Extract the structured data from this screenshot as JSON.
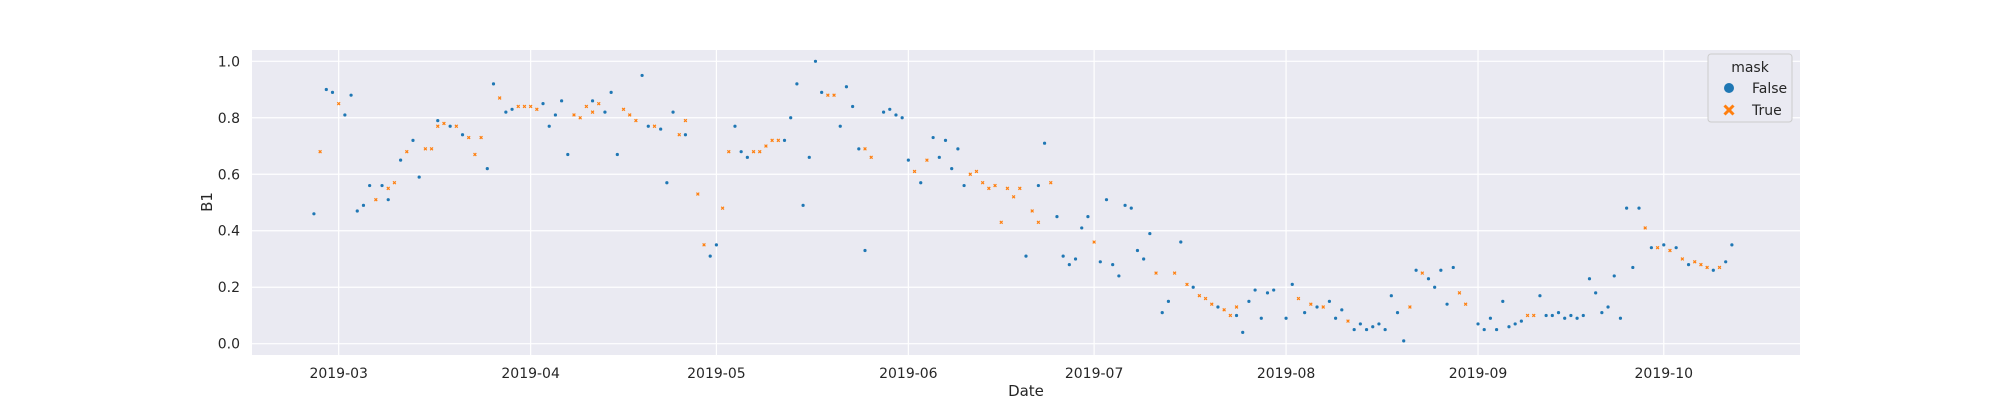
{
  "chart_data": {
    "type": "scatter",
    "title": "",
    "xlabel": "Date",
    "ylabel": "B1",
    "x_range": [
      "2019-02-15",
      "2019-10-23"
    ],
    "ylim": [
      -0.04,
      1.04
    ],
    "x_ticks": [
      "2019-03-01",
      "2019-04-01",
      "2019-05-01",
      "2019-06-01",
      "2019-07-01",
      "2019-08-01",
      "2019-09-01",
      "2019-10-01"
    ],
    "x_tick_labels": [
      "2019-03",
      "2019-04",
      "2019-05",
      "2019-06",
      "2019-07",
      "2019-08",
      "2019-09",
      "2019-10"
    ],
    "y_ticks": [
      0.0,
      0.2,
      0.4,
      0.6,
      0.8,
      1.0
    ],
    "y_tick_labels": [
      "0.0",
      "0.2",
      "0.4",
      "0.6",
      "0.8",
      "1.0"
    ],
    "grid": true,
    "background": "#eaeaf2",
    "legend": {
      "title": "mask",
      "placement": "top-right",
      "entries": [
        {
          "label": "False",
          "marker": "circle",
          "color": "#1f77b4"
        },
        {
          "label": "True",
          "marker": "x",
          "color": "#ff7f0e"
        }
      ]
    },
    "series": [
      {
        "name": "False",
        "color": "#1f77b4",
        "marker": "circle",
        "points": [
          [
            "2019-02-25",
            0.46
          ],
          [
            "2019-02-27",
            0.9
          ],
          [
            "2019-02-28",
            0.89
          ],
          [
            "2019-03-02",
            0.81
          ],
          [
            "2019-03-03",
            0.88
          ],
          [
            "2019-03-04",
            0.47
          ],
          [
            "2019-03-05",
            0.49
          ],
          [
            "2019-03-06",
            0.56
          ],
          [
            "2019-03-08",
            0.56
          ],
          [
            "2019-03-09",
            0.51
          ],
          [
            "2019-03-11",
            0.65
          ],
          [
            "2019-03-13",
            0.72
          ],
          [
            "2019-03-14",
            0.59
          ],
          [
            "2019-03-17",
            0.79
          ],
          [
            "2019-03-19",
            0.77
          ],
          [
            "2019-03-21",
            0.74
          ],
          [
            "2019-03-25",
            0.62
          ],
          [
            "2019-03-26",
            0.92
          ],
          [
            "2019-03-28",
            0.82
          ],
          [
            "2019-03-29",
            0.83
          ],
          [
            "2019-04-03",
            0.85
          ],
          [
            "2019-04-04",
            0.77
          ],
          [
            "2019-04-05",
            0.81
          ],
          [
            "2019-04-06",
            0.86
          ],
          [
            "2019-04-07",
            0.67
          ],
          [
            "2019-04-11",
            0.86
          ],
          [
            "2019-04-13",
            0.82
          ],
          [
            "2019-04-14",
            0.89
          ],
          [
            "2019-04-15",
            0.67
          ],
          [
            "2019-04-19",
            0.95
          ],
          [
            "2019-04-20",
            0.77
          ],
          [
            "2019-04-22",
            0.76
          ],
          [
            "2019-04-23",
            0.57
          ],
          [
            "2019-04-24",
            0.82
          ],
          [
            "2019-04-26",
            0.74
          ],
          [
            "2019-04-30",
            0.31
          ],
          [
            "2019-05-01",
            0.35
          ],
          [
            "2019-05-04",
            0.77
          ],
          [
            "2019-05-05",
            0.68
          ],
          [
            "2019-05-06",
            0.66
          ],
          [
            "2019-05-12",
            0.72
          ],
          [
            "2019-05-13",
            0.8
          ],
          [
            "2019-05-14",
            0.92
          ],
          [
            "2019-05-15",
            0.49
          ],
          [
            "2019-05-16",
            0.66
          ],
          [
            "2019-05-17",
            1.0
          ],
          [
            "2019-05-18",
            0.89
          ],
          [
            "2019-05-21",
            0.77
          ],
          [
            "2019-05-22",
            0.91
          ],
          [
            "2019-05-23",
            0.84
          ],
          [
            "2019-05-24",
            0.69
          ],
          [
            "2019-05-25",
            0.33
          ],
          [
            "2019-05-28",
            0.82
          ],
          [
            "2019-05-29",
            0.83
          ],
          [
            "2019-05-30",
            0.81
          ],
          [
            "2019-05-31",
            0.8
          ],
          [
            "2019-06-01",
            0.65
          ],
          [
            "2019-06-03",
            0.57
          ],
          [
            "2019-06-05",
            0.73
          ],
          [
            "2019-06-06",
            0.66
          ],
          [
            "2019-06-07",
            0.72
          ],
          [
            "2019-06-08",
            0.62
          ],
          [
            "2019-06-09",
            0.69
          ],
          [
            "2019-06-10",
            0.56
          ],
          [
            "2019-06-20",
            0.31
          ],
          [
            "2019-06-22",
            0.56
          ],
          [
            "2019-06-23",
            0.71
          ],
          [
            "2019-06-25",
            0.45
          ],
          [
            "2019-06-26",
            0.31
          ],
          [
            "2019-06-27",
            0.28
          ],
          [
            "2019-06-28",
            0.3
          ],
          [
            "2019-06-29",
            0.41
          ],
          [
            "2019-06-30",
            0.45
          ],
          [
            "2019-07-02",
            0.29
          ],
          [
            "2019-07-03",
            0.51
          ],
          [
            "2019-07-04",
            0.28
          ],
          [
            "2019-07-05",
            0.24
          ],
          [
            "2019-07-06",
            0.49
          ],
          [
            "2019-07-07",
            0.48
          ],
          [
            "2019-07-08",
            0.33
          ],
          [
            "2019-07-09",
            0.3
          ],
          [
            "2019-07-10",
            0.39
          ],
          [
            "2019-07-12",
            0.11
          ],
          [
            "2019-07-13",
            0.15
          ],
          [
            "2019-07-15",
            0.36
          ],
          [
            "2019-07-17",
            0.2
          ],
          [
            "2019-07-21",
            0.13
          ],
          [
            "2019-07-24",
            0.1
          ],
          [
            "2019-07-25",
            0.04
          ],
          [
            "2019-07-26",
            0.15
          ],
          [
            "2019-07-27",
            0.19
          ],
          [
            "2019-07-28",
            0.09
          ],
          [
            "2019-07-29",
            0.18
          ],
          [
            "2019-07-30",
            0.19
          ],
          [
            "2019-08-01",
            0.09
          ],
          [
            "2019-08-02",
            0.21
          ],
          [
            "2019-08-04",
            0.11
          ],
          [
            "2019-08-06",
            0.13
          ],
          [
            "2019-08-08",
            0.15
          ],
          [
            "2019-08-09",
            0.09
          ],
          [
            "2019-08-10",
            0.12
          ],
          [
            "2019-08-12",
            0.05
          ],
          [
            "2019-08-13",
            0.07
          ],
          [
            "2019-08-14",
            0.05
          ],
          [
            "2019-08-15",
            0.06
          ],
          [
            "2019-08-16",
            0.07
          ],
          [
            "2019-08-17",
            0.05
          ],
          [
            "2019-08-18",
            0.17
          ],
          [
            "2019-08-19",
            0.11
          ],
          [
            "2019-08-20",
            0.01
          ],
          [
            "2019-08-22",
            0.26
          ],
          [
            "2019-08-24",
            0.23
          ],
          [
            "2019-08-25",
            0.2
          ],
          [
            "2019-08-26",
            0.26
          ],
          [
            "2019-08-27",
            0.14
          ],
          [
            "2019-08-28",
            0.27
          ],
          [
            "2019-09-01",
            0.07
          ],
          [
            "2019-09-02",
            0.05
          ],
          [
            "2019-09-03",
            0.09
          ],
          [
            "2019-09-04",
            0.05
          ],
          [
            "2019-09-05",
            0.15
          ],
          [
            "2019-09-06",
            0.06
          ],
          [
            "2019-09-07",
            0.07
          ],
          [
            "2019-09-08",
            0.08
          ],
          [
            "2019-09-11",
            0.17
          ],
          [
            "2019-09-12",
            0.1
          ],
          [
            "2019-09-13",
            0.1
          ],
          [
            "2019-09-14",
            0.11
          ],
          [
            "2019-09-15",
            0.09
          ],
          [
            "2019-09-16",
            0.1
          ],
          [
            "2019-09-17",
            0.09
          ],
          [
            "2019-09-18",
            0.1
          ],
          [
            "2019-09-19",
            0.23
          ],
          [
            "2019-09-20",
            0.18
          ],
          [
            "2019-09-21",
            0.11
          ],
          [
            "2019-09-22",
            0.13
          ],
          [
            "2019-09-23",
            0.24
          ],
          [
            "2019-09-24",
            0.09
          ],
          [
            "2019-09-25",
            0.48
          ],
          [
            "2019-09-26",
            0.27
          ],
          [
            "2019-09-27",
            0.48
          ],
          [
            "2019-09-29",
            0.34
          ],
          [
            "2019-10-01",
            0.35
          ],
          [
            "2019-10-03",
            0.34
          ],
          [
            "2019-10-05",
            0.28
          ],
          [
            "2019-10-09",
            0.26
          ],
          [
            "2019-10-11",
            0.29
          ],
          [
            "2019-10-12",
            0.35
          ]
        ]
      },
      {
        "name": "True",
        "color": "#ff7f0e",
        "marker": "x",
        "points": [
          [
            "2019-02-26",
            0.68
          ],
          [
            "2019-03-01",
            0.85
          ],
          [
            "2019-03-07",
            0.51
          ],
          [
            "2019-03-09",
            0.55
          ],
          [
            "2019-03-10",
            0.57
          ],
          [
            "2019-03-12",
            0.68
          ],
          [
            "2019-03-15",
            0.69
          ],
          [
            "2019-03-16",
            0.69
          ],
          [
            "2019-03-17",
            0.77
          ],
          [
            "2019-03-18",
            0.78
          ],
          [
            "2019-03-20",
            0.77
          ],
          [
            "2019-03-22",
            0.73
          ],
          [
            "2019-03-23",
            0.67
          ],
          [
            "2019-03-24",
            0.73
          ],
          [
            "2019-03-27",
            0.87
          ],
          [
            "2019-03-30",
            0.84
          ],
          [
            "2019-03-31",
            0.84
          ],
          [
            "2019-04-01",
            0.84
          ],
          [
            "2019-04-02",
            0.83
          ],
          [
            "2019-04-08",
            0.81
          ],
          [
            "2019-04-09",
            0.8
          ],
          [
            "2019-04-10",
            0.84
          ],
          [
            "2019-04-11",
            0.82
          ],
          [
            "2019-04-12",
            0.85
          ],
          [
            "2019-04-16",
            0.83
          ],
          [
            "2019-04-17",
            0.81
          ],
          [
            "2019-04-18",
            0.79
          ],
          [
            "2019-04-21",
            0.77
          ],
          [
            "2019-04-25",
            0.74
          ],
          [
            "2019-04-26",
            0.79
          ],
          [
            "2019-04-28",
            0.53
          ],
          [
            "2019-04-29",
            0.35
          ],
          [
            "2019-05-02",
            0.48
          ],
          [
            "2019-05-03",
            0.68
          ],
          [
            "2019-05-07",
            0.68
          ],
          [
            "2019-05-08",
            0.68
          ],
          [
            "2019-05-09",
            0.7
          ],
          [
            "2019-05-10",
            0.72
          ],
          [
            "2019-05-11",
            0.72
          ],
          [
            "2019-05-19",
            0.88
          ],
          [
            "2019-05-20",
            0.88
          ],
          [
            "2019-05-25",
            0.69
          ],
          [
            "2019-05-26",
            0.66
          ],
          [
            "2019-06-02",
            0.61
          ],
          [
            "2019-06-04",
            0.65
          ],
          [
            "2019-06-11",
            0.6
          ],
          [
            "2019-06-12",
            0.61
          ],
          [
            "2019-06-13",
            0.57
          ],
          [
            "2019-06-14",
            0.55
          ],
          [
            "2019-06-15",
            0.56
          ],
          [
            "2019-06-16",
            0.43
          ],
          [
            "2019-06-17",
            0.55
          ],
          [
            "2019-06-18",
            0.52
          ],
          [
            "2019-06-19",
            0.55
          ],
          [
            "2019-06-21",
            0.47
          ],
          [
            "2019-06-22",
            0.43
          ],
          [
            "2019-06-24",
            0.57
          ],
          [
            "2019-07-01",
            0.36
          ],
          [
            "2019-07-11",
            0.25
          ],
          [
            "2019-07-14",
            0.25
          ],
          [
            "2019-07-16",
            0.21
          ],
          [
            "2019-07-18",
            0.17
          ],
          [
            "2019-07-19",
            0.16
          ],
          [
            "2019-07-20",
            0.14
          ],
          [
            "2019-07-22",
            0.12
          ],
          [
            "2019-07-23",
            0.1
          ],
          [
            "2019-07-24",
            0.13
          ],
          [
            "2019-08-03",
            0.16
          ],
          [
            "2019-08-05",
            0.14
          ],
          [
            "2019-08-07",
            0.13
          ],
          [
            "2019-08-11",
            0.08
          ],
          [
            "2019-08-21",
            0.13
          ],
          [
            "2019-08-23",
            0.25
          ],
          [
            "2019-08-29",
            0.18
          ],
          [
            "2019-08-30",
            0.14
          ],
          [
            "2019-09-09",
            0.1
          ],
          [
            "2019-09-10",
            0.1
          ],
          [
            "2019-09-28",
            0.41
          ],
          [
            "2019-09-30",
            0.34
          ],
          [
            "2019-10-02",
            0.33
          ],
          [
            "2019-10-04",
            0.3
          ],
          [
            "2019-10-06",
            0.29
          ],
          [
            "2019-10-07",
            0.28
          ],
          [
            "2019-10-08",
            0.27
          ],
          [
            "2019-10-10",
            0.27
          ]
        ]
      }
    ]
  }
}
